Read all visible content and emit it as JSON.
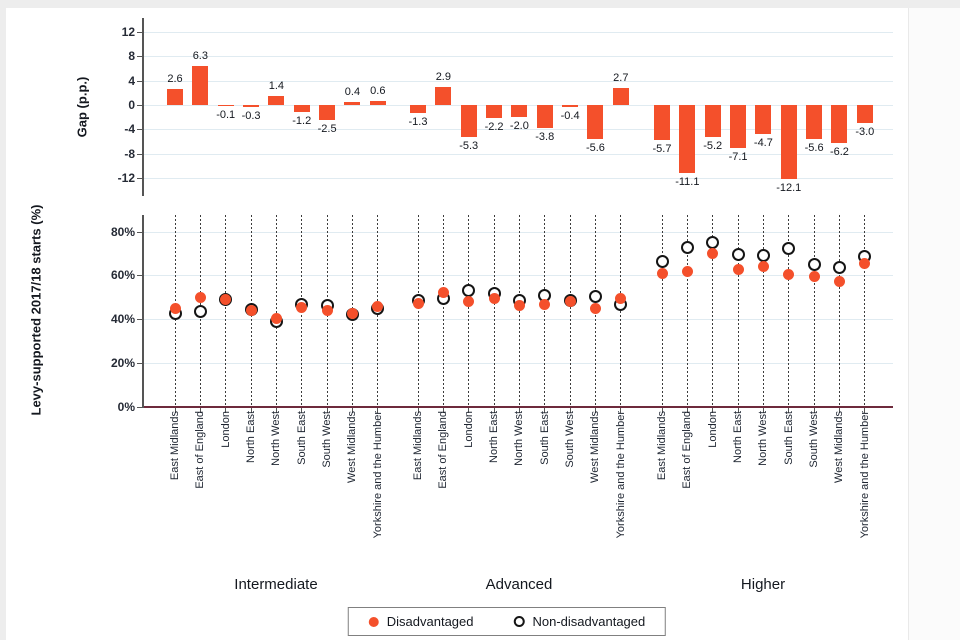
{
  "figure": {
    "groups": [
      "Intermediate",
      "Advanced",
      "Higher"
    ],
    "regions": [
      "East Midlands",
      "East of England",
      "London",
      "North East",
      "North West",
      "South East",
      "South West",
      "West Midlands",
      "Yorkshire and the Humber"
    ],
    "legend": {
      "disadvantaged_label": "Disadvantaged",
      "non_disadvantaged_label": "Non-disadvantaged"
    },
    "colors": {
      "accent": "#f4502b",
      "grid": "#e0ebf1",
      "axis": "#555555",
      "baseline_maroon": "#6e2a3c",
      "marker_open_stroke": "#151515",
      "text": "#1d2430"
    }
  },
  "chart_data": [
    {
      "type": "bar",
      "title": "",
      "ylabel": "Gap (p.p.)",
      "yticks": [
        12,
        8,
        4,
        0,
        -4,
        -8,
        -12
      ],
      "ylim": [
        -15,
        14.2
      ],
      "grid": true,
      "categories": [
        "East Midlands",
        "East of England",
        "London",
        "North East",
        "North West",
        "South East",
        "South West",
        "West Midlands",
        "Yorkshire and the Humber"
      ],
      "series": [
        {
          "name": "Intermediate",
          "values": [
            2.6,
            6.3,
            -0.1,
            -0.3,
            1.4,
            -1.2,
            -2.5,
            0.4,
            0.6
          ],
          "labels": [
            "2.6",
            "6.3",
            "-0.1",
            "-0.3",
            "1.4",
            "-1.2",
            "-2.5",
            "0.4",
            "0.6"
          ]
        },
        {
          "name": "Advanced",
          "values": [
            -1.3,
            2.9,
            -5.3,
            -2.2,
            -2.0,
            -3.8,
            -0.4,
            -5.6,
            2.7
          ],
          "labels": [
            "-1.3",
            "2.9",
            "-5.3",
            "-2.2",
            "-2.0",
            "-3.8",
            "-0.4",
            "-5.6",
            "2.7"
          ]
        },
        {
          "name": "Higher",
          "values": [
            -5.7,
            -11.1,
            -5.2,
            -7.1,
            -4.7,
            -12.1,
            -5.6,
            -6.2,
            -3.0
          ],
          "labels": [
            "-5.7",
            "-11.1",
            "-5.2",
            "-7.1",
            "-4.7",
            "-12.1",
            "-5.6",
            "-6.2",
            "-3.0"
          ]
        }
      ],
      "bar_color": "#f4502b"
    },
    {
      "type": "scatter",
      "title": "",
      "ylabel": "Levy-supported 2017/18 starts (%)",
      "ytick_labels": [
        "80%",
        "60%",
        "40%",
        "20%",
        "0%"
      ],
      "ytick_values": [
        80,
        60,
        40,
        20,
        0
      ],
      "ylim": [
        0,
        87
      ],
      "grid": true,
      "categories": [
        "East Midlands",
        "East of England",
        "London",
        "North East",
        "North West",
        "South East",
        "South West",
        "West Midlands",
        "Yorkshire and the Humber"
      ],
      "series": [
        {
          "name": "Disadvantaged",
          "marker": "filled",
          "color": "#f4502b",
          "values_by_group": {
            "Intermediate": [
              45.0,
              50.0,
              49.0,
              44.0,
              40.4,
              45.4,
              43.8,
              42.7,
              45.6
            ],
            "Advanced": [
              47.3,
              52.4,
              48.0,
              49.4,
              46.3,
              46.9,
              48.0,
              44.9,
              49.6
            ],
            "Higher": [
              60.7,
              61.6,
              69.8,
              62.6,
              64.3,
              60.4,
              59.6,
              57.4,
              65.5
            ]
          }
        },
        {
          "name": "Non-disadvantaged",
          "marker": "open",
          "color": "#151515",
          "values_by_group": {
            "Intermediate": [
              42.4,
              43.7,
              49.1,
              44.3,
              39.0,
              46.6,
              46.3,
              42.3,
              45.0
            ],
            "Advanced": [
              48.6,
              49.5,
              53.3,
              51.6,
              48.3,
              50.7,
              48.4,
              50.5,
              46.9
            ],
            "Higher": [
              66.4,
              72.7,
              75.0,
              69.7,
              69.0,
              72.5,
              65.2,
              63.6,
              68.5
            ]
          }
        }
      ]
    }
  ]
}
